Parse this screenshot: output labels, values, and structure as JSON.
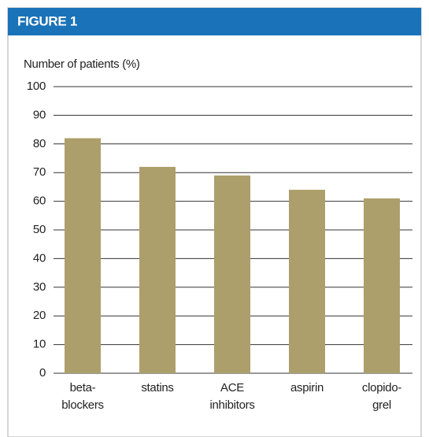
{
  "chart_data": {
    "type": "bar",
    "title": "FIGURE 1",
    "ylabel": "Number of patients (%)",
    "categories": [
      "beta-\nblockers",
      "statins",
      "ACE\ninhibitors",
      "aspirin",
      "clopido-\ngrel"
    ],
    "values": [
      82,
      72,
      69,
      64,
      61
    ],
    "color": "#ad9f6b",
    "ylim": [
      0,
      100
    ],
    "yticks": [
      0,
      10,
      20,
      30,
      40,
      50,
      60,
      70,
      80,
      90,
      100
    ],
    "grid": true
  }
}
